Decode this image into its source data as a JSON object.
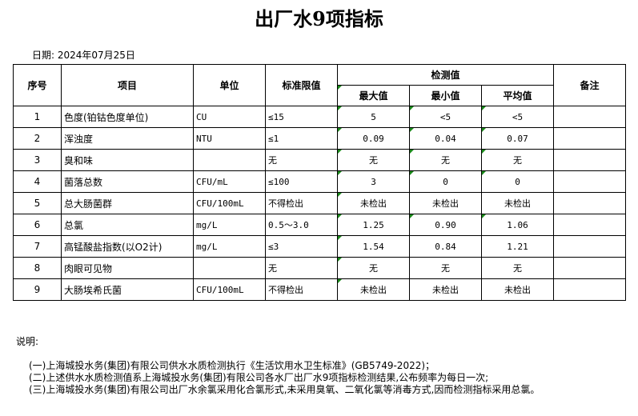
{
  "title": "出厂水9项指标",
  "date_label": "日期: 2024年07月25日",
  "headers": {
    "no": "序号",
    "item": "项目",
    "unit": "单位",
    "limit": "标准限值",
    "measured": "检测值",
    "max": "最大值",
    "min": "最小值",
    "avg": "平均值",
    "remark": "备注"
  },
  "rows": [
    {
      "no": "1",
      "item": "色度(铂钴色度单位)",
      "unit": "CU",
      "limit": "≤15",
      "max": "5",
      "min": "<5",
      "avg": "<5"
    },
    {
      "no": "2",
      "item": "浑浊度",
      "unit": "NTU",
      "limit": "≤1",
      "max": "0.09",
      "min": "0.04",
      "avg": "0.07"
    },
    {
      "no": "3",
      "item": "臭和味",
      "unit": "",
      "limit": "无",
      "max": "无",
      "min": "无",
      "avg": "无"
    },
    {
      "no": "4",
      "item": "菌落总数",
      "unit": "CFU/mL",
      "limit": "≤100",
      "max": "3",
      "min": "0",
      "avg": "0"
    },
    {
      "no": "5",
      "item": "总大肠菌群",
      "unit": "CFU/100mL",
      "limit": "不得检出",
      "max": "未检出",
      "min": "未检出",
      "avg": "未检出"
    },
    {
      "no": "6",
      "item": "总氯",
      "unit": "mg/L",
      "limit": "0.5～3.0",
      "max": "1.25",
      "min": "0.90",
      "avg": "1.06"
    },
    {
      "no": "7",
      "item": "高锰酸盐指数(以O2计)",
      "unit": "mg/L",
      "limit": "≤3",
      "max": "1.54",
      "min": "0.84",
      "avg": "1.21"
    },
    {
      "no": "8",
      "item": "肉眼可见物",
      "unit": "",
      "limit": "无",
      "max": "无",
      "min": "无",
      "avg": "无"
    },
    {
      "no": "9",
      "item": "大肠埃希氏菌",
      "unit": "CFU/100mL",
      "limit": "不得检出",
      "max": "未检出",
      "min": "未检出",
      "avg": "未检出"
    }
  ],
  "notes": {
    "label": "说明:",
    "lines": [
      "(一)上海城投水务(集团)有限公司供水水质检测执行《生活饮用水卫生标准》(GB5749-2022)；",
      "(二)上述供水水质检测值系上海城投水务(集团)有限公司各水厂出厂水9项指标检测结果,公布频率为每日一次;",
      "(三)上海城投水务(集团)有限公司出厂水余氯采用化合氯形式,未采用臭氧、二氧化氯等消毒方式,因而检测指标采用总氯。"
    ]
  }
}
